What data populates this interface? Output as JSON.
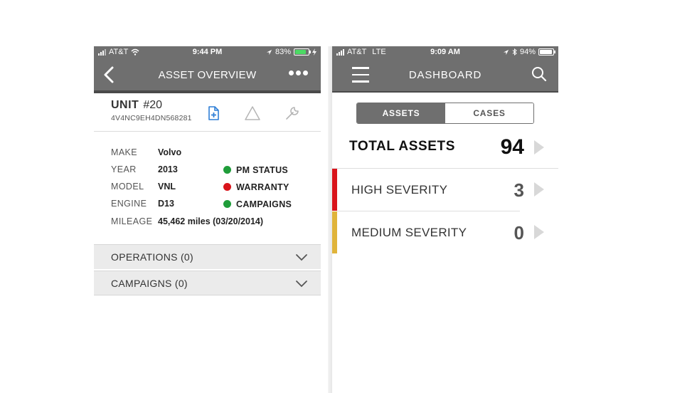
{
  "left_screen": {
    "status_bar": {
      "carrier": "AT&T",
      "time": "9:44 PM",
      "battery": "83%",
      "battery_level": 0.83,
      "battery_color": "#4cd964"
    },
    "nav": {
      "title": "ASSET OVERVIEW",
      "back_icon": "chevron-left-icon",
      "more_icon": "more-dots-icon"
    },
    "unit": {
      "label": "UNIT",
      "number": "#20",
      "vin": "4V4NC9EH4DN568281"
    },
    "unit_actions": [
      {
        "icon": "add-document-icon",
        "color": "#2f7fd6"
      },
      {
        "icon": "warning-triangle-icon",
        "color": "#b5b5b5"
      },
      {
        "icon": "wrench-icon",
        "color": "#b5b5b5"
      }
    ],
    "specs": [
      {
        "key": "MAKE",
        "value": "Volvo"
      },
      {
        "key": "YEAR",
        "value": "2013"
      },
      {
        "key": "MODEL",
        "value": "VNL"
      },
      {
        "key": "ENGINE",
        "value": "D13"
      },
      {
        "key": "MILEAGE",
        "value": "45,462 miles (03/20/2014)"
      }
    ],
    "status_items": [
      {
        "label": "PM STATUS",
        "color": "#1f9d3a"
      },
      {
        "label": "WARRANTY",
        "color": "#d9141b"
      },
      {
        "label": "CAMPAIGNS",
        "color": "#1f9d3a"
      }
    ],
    "sections": [
      {
        "label": "OPERATIONS (0)",
        "icon": "chevron-down-icon"
      },
      {
        "label": "CAMPAIGNS (0)",
        "icon": "chevron-down-icon"
      }
    ]
  },
  "right_screen": {
    "status_bar": {
      "carrier": "AT&T",
      "network": "LTE",
      "time": "9:09 AM",
      "battery": "94%",
      "battery_level": 0.94,
      "battery_color": "#ffffff"
    },
    "nav": {
      "title": "DASHBOARD",
      "menu_icon": "hamburger-menu-icon",
      "search_icon": "search-icon"
    },
    "tabs": [
      {
        "label": "ASSETS",
        "active": true
      },
      {
        "label": "CASES",
        "active": false
      }
    ],
    "total": {
      "label": "TOTAL ASSETS",
      "count": "94"
    },
    "severity_rows": [
      {
        "label": "HIGH SEVERITY",
        "count": "3",
        "color": "#d9141b"
      },
      {
        "label": "MEDIUM SEVERITY",
        "count": "0",
        "color": "#e0b43a"
      }
    ]
  }
}
